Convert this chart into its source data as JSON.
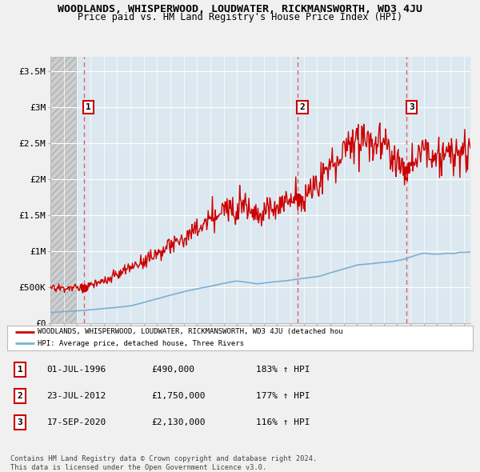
{
  "title": "WOODLANDS, WHISPERWOOD, LOUDWATER, RICKMANSWORTH, WD3 4JU",
  "subtitle": "Price paid vs. HM Land Registry's House Price Index (HPI)",
  "ylim": [
    0,
    3700000
  ],
  "yticks": [
    0,
    500000,
    1000000,
    1500000,
    2000000,
    2500000,
    3000000,
    3500000
  ],
  "ytick_labels": [
    "£0",
    "£500K",
    "£1M",
    "£1.5M",
    "£2M",
    "£2.5M",
    "£3M",
    "£3.5M"
  ],
  "price_paid_color": "#cc0000",
  "hpi_line_color": "#7ab0d4",
  "bg_color": "#f0f0f0",
  "plot_bg_color": "#dce8f0",
  "grid_color": "#ffffff",
  "dashed_line_color": "#e06060",
  "sale_markers": [
    {
      "date_num": 1996.5,
      "price": 490000,
      "label": "1"
    },
    {
      "date_num": 2012.55,
      "price": 1750000,
      "label": "2"
    },
    {
      "date_num": 2020.72,
      "price": 2130000,
      "label": "3"
    }
  ],
  "legend_entries": [
    "WOODLANDS, WHISPERWOOD, LOUDWATER, RICKMANSWORTH, WD3 4JU (detached hou",
    "HPI: Average price, detached house, Three Rivers"
  ],
  "table_rows": [
    [
      "1",
      "01-JUL-1996",
      "£490,000",
      "183% ↑ HPI"
    ],
    [
      "2",
      "23-JUL-2012",
      "£1,750,000",
      "177% ↑ HPI"
    ],
    [
      "3",
      "17-SEP-2020",
      "£2,130,000",
      "116% ↑ HPI"
    ]
  ],
  "footer": "Contains HM Land Registry data © Crown copyright and database right 2024.\nThis data is licensed under the Open Government Licence v3.0.",
  "xmin": 1994,
  "xmax": 2025.5,
  "hatch_end": 1995.9
}
